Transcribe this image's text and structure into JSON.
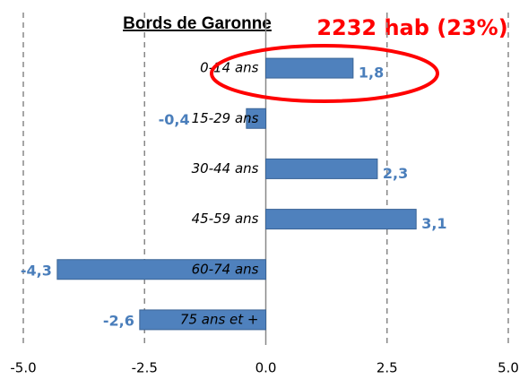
{
  "chart_data": {
    "type": "bar",
    "orientation": "horizontal",
    "title": "Bords de Garonne",
    "annotation": "2232 hab (23%)",
    "categories": [
      "0-14 ans",
      "15-29 ans",
      "30-44 ans",
      "45-59 ans",
      "60-74 ans",
      "75 ans et +"
    ],
    "values": [
      1.8,
      -0.4,
      2.3,
      3.1,
      -4.3,
      -2.6
    ],
    "value_labels": [
      "1,8",
      "-0,4",
      "2,3",
      "3,1",
      "-4,3",
      "-2,6"
    ],
    "color": "#4f81bd",
    "xlim": [
      -5,
      5
    ],
    "xticks": [
      {
        "value": -5,
        "label": "-5.0"
      },
      {
        "value": -2.5,
        "label": "-2.5"
      },
      {
        "value": 0,
        "label": "0.0"
      },
      {
        "value": 2.5,
        "label": "2.5"
      },
      {
        "value": 5,
        "label": "5.0"
      }
    ],
    "grid": true
  }
}
